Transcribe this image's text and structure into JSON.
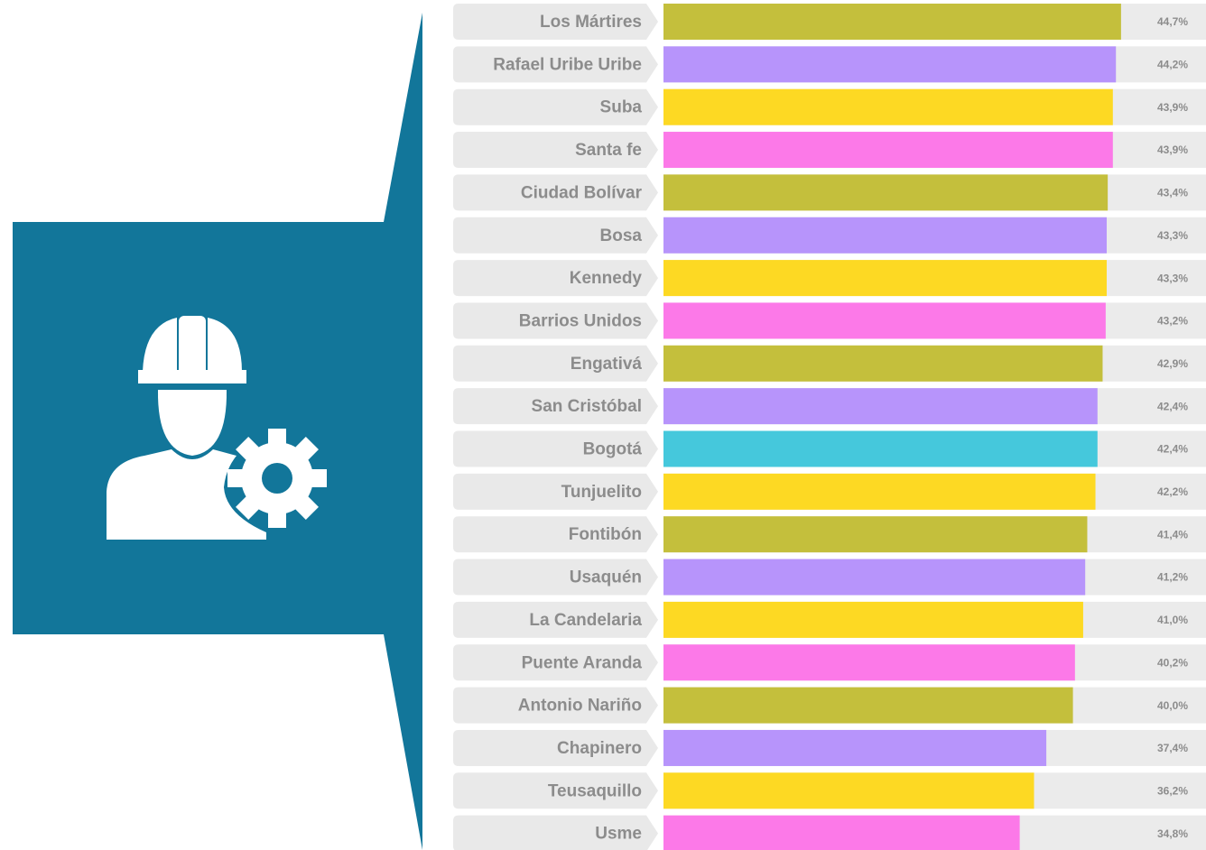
{
  "chart_data": {
    "type": "bar",
    "orientation": "horizontal",
    "categories": [
      "Los Mártires",
      "Rafael Uribe Uribe",
      "Suba",
      "Santa fe",
      "Ciudad Bolívar",
      "Bosa",
      "Kennedy",
      "Barrios Unidos",
      "Engativá",
      "San Cristóbal",
      "Bogotá",
      "Tunjuelito",
      "Fontibón",
      "Usaquén",
      "La Candelaria",
      "Puente Aranda",
      "Antonio Nariño",
      "Chapinero",
      "Teusaquillo",
      "Usme"
    ],
    "values": [
      44.7,
      44.2,
      43.9,
      43.9,
      43.4,
      43.3,
      43.3,
      43.2,
      42.9,
      42.4,
      42.4,
      42.2,
      41.4,
      41.2,
      41.0,
      40.2,
      40.0,
      37.4,
      36.2,
      34.8
    ],
    "value_labels": [
      "44,7%",
      "44,2%",
      "43,9%",
      "43,9%",
      "43,4%",
      "43,3%",
      "43,3%",
      "43,2%",
      "42,9%",
      "42,4%",
      "42,4%",
      "42,2%",
      "41,4%",
      "41,2%",
      "41,0%",
      "40,2%",
      "40,0%",
      "37,4%",
      "36,2%",
      "34,8%"
    ],
    "colors": [
      "#c4bf3c",
      "#b794fb",
      "#fdd923",
      "#fc79e8",
      "#c4bf3c",
      "#b794fb",
      "#fdd923",
      "#fc79e8",
      "#c4bf3c",
      "#b794fb",
      "#45c8dc",
      "#fdd923",
      "#c4bf3c",
      "#b794fb",
      "#fdd923",
      "#fc79e8",
      "#c4bf3c",
      "#b794fb",
      "#fdd923",
      "#fc79e8"
    ],
    "xlim": [
      0,
      53
    ]
  }
}
